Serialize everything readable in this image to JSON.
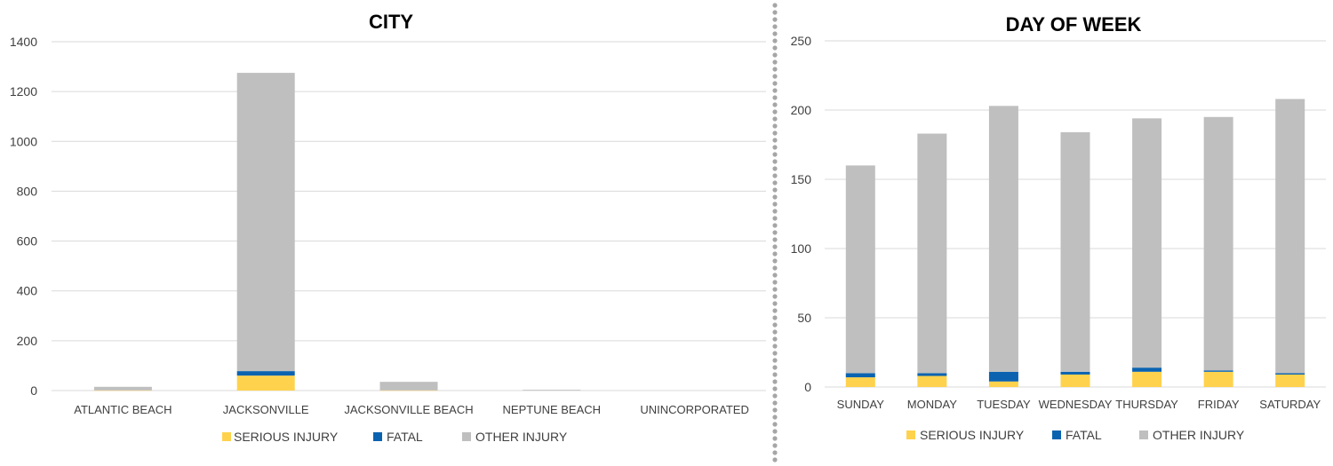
{
  "colors": {
    "serious": "#FFD24D",
    "fatal": "#0B63B0",
    "other": "#BFBFBF",
    "grid": "#D9D9D9",
    "divider": "#A6A6A6"
  },
  "chart_data": [
    {
      "type": "bar",
      "stacked": true,
      "title": "CITY",
      "categories": [
        "ATLANTIC BEACH",
        "JACKSONVILLE",
        "JACKSONVILLE BEACH",
        "NEPTUNE BEACH",
        "UNINCORPORATED"
      ],
      "series": [
        {
          "name": "SERIOUS INJURY",
          "values": [
            1,
            60,
            1,
            0,
            0
          ]
        },
        {
          "name": "FATAL",
          "values": [
            0,
            18,
            0,
            0,
            0
          ]
        },
        {
          "name": "OTHER INJURY",
          "values": [
            14,
            1197,
            34,
            3,
            0
          ]
        }
      ],
      "yticks": [
        0,
        200,
        400,
        600,
        800,
        1000,
        1200,
        1400
      ],
      "ylim": [
        0,
        1400
      ],
      "grid": true,
      "legend": "bottom"
    },
    {
      "type": "bar",
      "stacked": true,
      "title": "DAY OF WEEK",
      "categories": [
        "SUNDAY",
        "MONDAY",
        "TUESDAY",
        "WEDNESDAY",
        "THURSDAY",
        "FRIDAY",
        "SATURDAY"
      ],
      "series": [
        {
          "name": "SERIOUS INJURY",
          "values": [
            7,
            8,
            4,
            9,
            11,
            11,
            9
          ]
        },
        {
          "name": "FATAL",
          "values": [
            3,
            2,
            7,
            2,
            3,
            1,
            1
          ]
        },
        {
          "name": "OTHER INJURY",
          "values": [
            150,
            173,
            192,
            173,
            180,
            183,
            198
          ]
        }
      ],
      "yticks": [
        0,
        50,
        100,
        150,
        200,
        250
      ],
      "ylim": [
        0,
        250
      ],
      "grid": true,
      "legend": "bottom"
    }
  ]
}
